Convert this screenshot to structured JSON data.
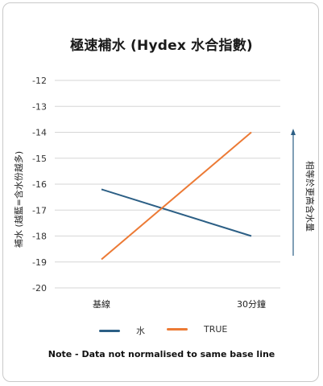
{
  "chart_data": {
    "type": "line",
    "title": "極速補水 (Hydex 水合指數)",
    "ylabel": "補水 (越藍=含水份越多)",
    "right_annotation": "相等於更高含水量",
    "categories": [
      "基線",
      "30分鐘"
    ],
    "ylim": [
      -20,
      -12
    ],
    "yticks": [
      -12,
      -13,
      -14,
      -15,
      -16,
      -17,
      -18,
      -19,
      -20
    ],
    "grid": true,
    "legend_position": "bottom",
    "series": [
      {
        "name": "水",
        "values": [
          -16.2,
          -18
        ],
        "color": "#2c5f85"
      },
      {
        "name": "TRUE",
        "values": [
          -18.9,
          -14
        ],
        "color": "#ec7a35"
      }
    ],
    "note": "Note - Data not normalised to same base line"
  }
}
